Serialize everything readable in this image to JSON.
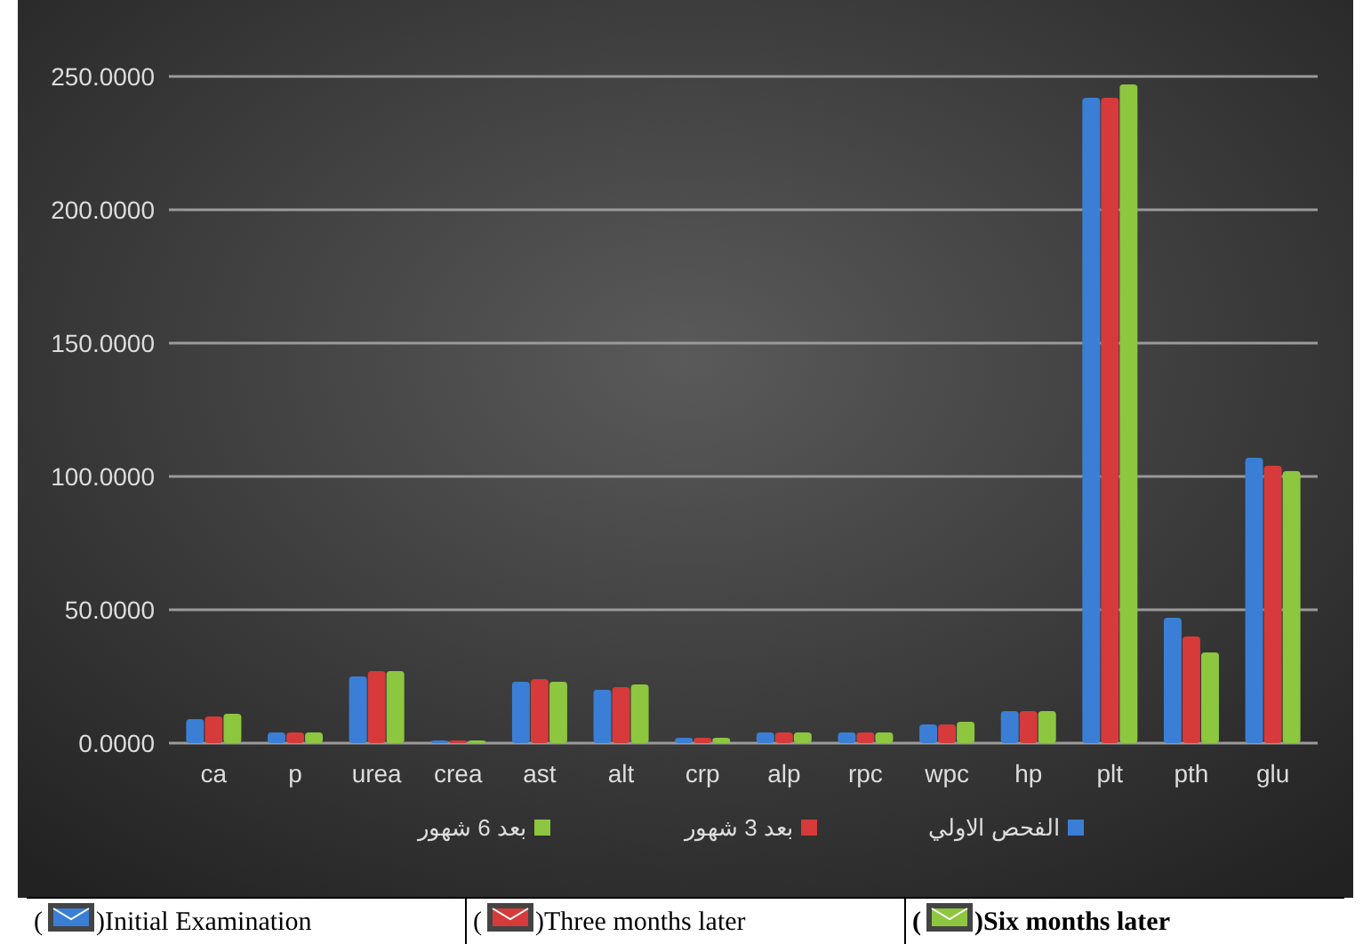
{
  "chart_data": {
    "type": "bar",
    "categories": [
      "ca",
      "p",
      "urea",
      "crea",
      "ast",
      "alt",
      "crp",
      "alp",
      "rpc",
      "wpc",
      "hp",
      "plt",
      "pth",
      "glu"
    ],
    "series": [
      {
        "name": "الفحص الاولي",
        "color": "#3a7fd5",
        "values": [
          9,
          4,
          25,
          1,
          23,
          20,
          2,
          4,
          4,
          7,
          12,
          242,
          47,
          107
        ]
      },
      {
        "name": "بعد 3 شهور",
        "color": "#d63a3a",
        "values": [
          10,
          4,
          27,
          1,
          24,
          21,
          2,
          4,
          4,
          7,
          12,
          242,
          40,
          104
        ]
      },
      {
        "name": "بعد 6 شهور",
        "color": "#8dc63f",
        "values": [
          11,
          4,
          27,
          1,
          23,
          22,
          2,
          4,
          4,
          8,
          12,
          247,
          34,
          102
        ]
      }
    ],
    "ylim": [
      0,
      250
    ],
    "yticks": [
      {
        "value": 0,
        "label": "0.0000"
      },
      {
        "value": 50,
        "label": "50.0000"
      },
      {
        "value": 100,
        "label": "100.0000"
      },
      {
        "value": 150,
        "label": "150.0000"
      },
      {
        "value": 200,
        "label": "200.0000"
      },
      {
        "value": 250,
        "label": "250.0000"
      }
    ],
    "grid": "y",
    "legend": "bottom",
    "annotations": [
      "(        )Initial Examination",
      "(        )Three months later",
      "(        )Six months later"
    ]
  }
}
